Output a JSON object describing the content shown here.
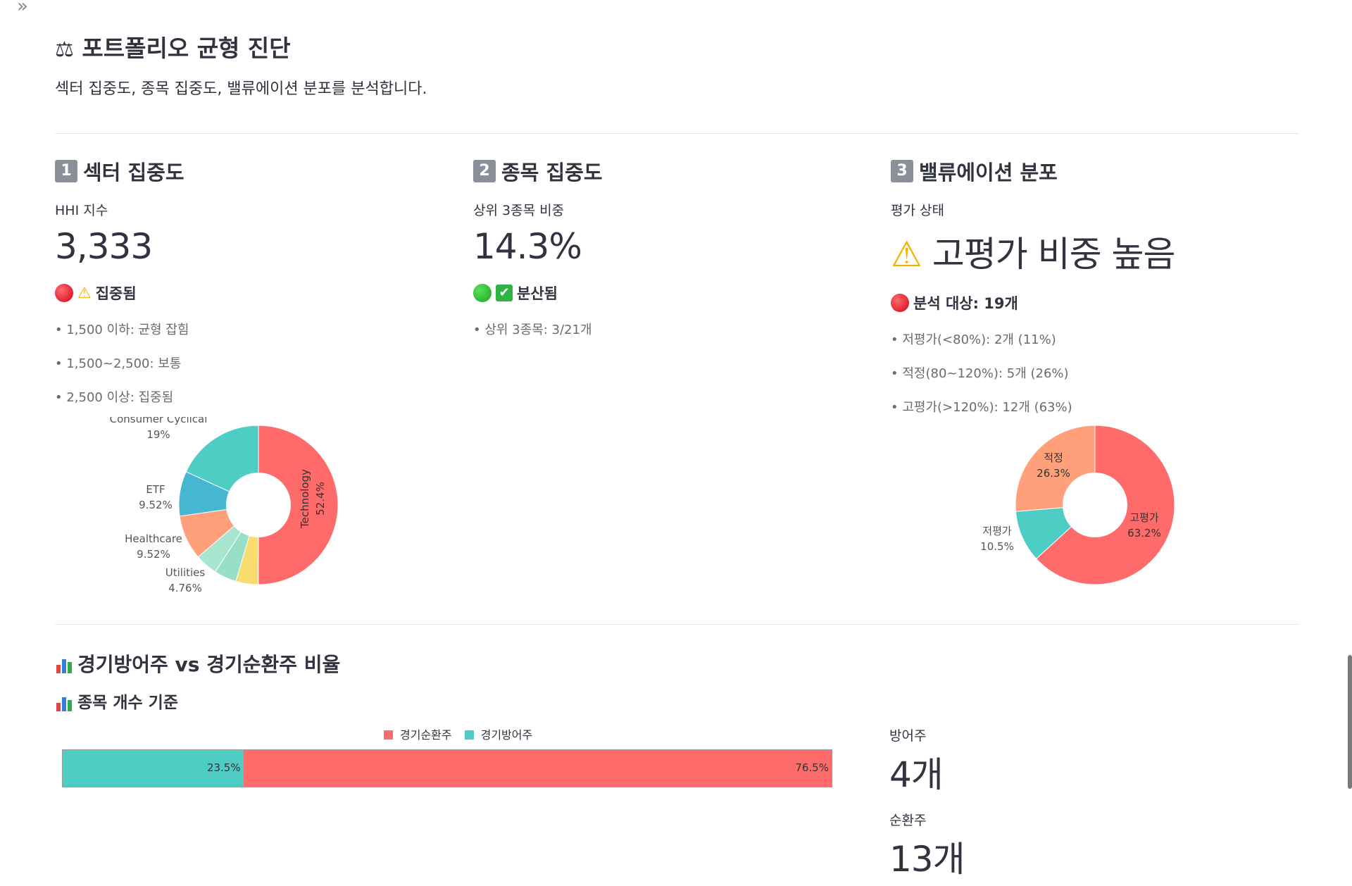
{
  "page": {
    "expand_icon": "»",
    "title": "포트폴리오 균형 진단",
    "title_icon": "scales-icon",
    "subtitle": "섹터 집중도, 종목 집중도, 밸류에이션 분포를 분석합니다."
  },
  "sector": {
    "num": "1",
    "heading": "섹터 집중도",
    "metric_label": "HHI 지수",
    "metric_value": "3,333",
    "status": "집중됨",
    "status_color": "#e00000",
    "bullets": [
      "1,500 이하: 균형 잡힘",
      "1,500~2,500: 보통",
      "2,500 이상: 집중됨"
    ]
  },
  "stock": {
    "num": "2",
    "heading": "종목 집중도",
    "metric_label": "상위 3종목 비중",
    "metric_value": "14.3%",
    "status": "분산됨",
    "status_color": "#1aa31a",
    "bullets": [
      "상위 3종목: 3/21개"
    ]
  },
  "valuation": {
    "num": "3",
    "heading": "밸류에이션 분포",
    "metric_label": "평가 상태",
    "metric_value": "고평가 비중 높음",
    "status": "분석 대상: 19개",
    "bullets": [
      "저평가(<80%): 2개 (11%)",
      "적정(80~120%): 5개 (26%)",
      "고평가(>120%): 12개 (63%)"
    ]
  },
  "cyclical": {
    "heading": "경기방어주 vs 경기순환주 비율",
    "subheading": "종목 개수 기준",
    "defensive_label": "방어주",
    "defensive_value": "4개",
    "cyclical_label": "순환주",
    "cyclical_value": "13개"
  },
  "chart_data": [
    {
      "type": "pie",
      "name": "sector",
      "labels": [
        "Technology",
        "Utilities",
        "",
        "",
        "Healthcare",
        "ETF",
        "Consumer Cyclical"
      ],
      "values": [
        52.4,
        4.76,
        4.76,
        4.76,
        9.52,
        9.52,
        19
      ],
      "value_labels": [
        "52.4%",
        "4.76%",
        "",
        "",
        "9.52%",
        "9.52%",
        "19%"
      ],
      "colors": [
        "#ff6b6b",
        "#f7dc6f",
        "#98dfc8",
        "#a8e6cf",
        "#ffa07a",
        "#45b7d1",
        "#4ecdc4"
      ],
      "hole": 0.35
    },
    {
      "type": "pie",
      "name": "valuation",
      "labels": [
        "고평가",
        "저평가",
        "적정"
      ],
      "values": [
        63.2,
        10.5,
        26.3
      ],
      "value_labels": [
        "63.2%",
        "10.5%",
        "26.3%"
      ],
      "colors": [
        "#ff6b6b",
        "#4ecdc4",
        "#ffa07a"
      ],
      "hole": 0.35
    },
    {
      "type": "bar",
      "name": "defensive_vs_cyclical",
      "orientation": "horizontal-stacked",
      "series": [
        {
          "name": "경기방어주",
          "values": [
            23.5
          ],
          "label": "23.5%",
          "color": "#4ecdc4"
        },
        {
          "name": "경기순환주",
          "values": [
            76.5
          ],
          "label": "76.5%",
          "color": "#ff6b6b"
        }
      ],
      "legend": [
        "경기순환주",
        "경기방어주"
      ],
      "legend_position": "top"
    }
  ]
}
